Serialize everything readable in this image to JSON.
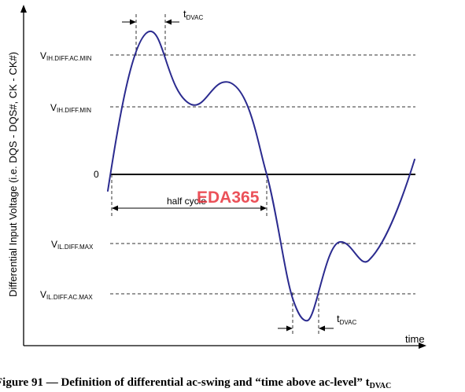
{
  "axes": {
    "y_label": "Differential Input Voltage (i.e. DQS - DQS#, CK - CK#)",
    "x_label": "time",
    "zero_label": "0"
  },
  "levels": {
    "vih_ac": {
      "main": "V",
      "sub": "IH.DIFF.AC.MIN"
    },
    "vih_dc": {
      "main": "V",
      "sub": "IH.DIFF.MIN"
    },
    "vil_dc": {
      "main": "V",
      "sub": "IL.DIFF.MAX"
    },
    "vil_ac": {
      "main": "V",
      "sub": "IL.DIFF.AC.MAX"
    }
  },
  "annotations": {
    "tdvac_top": {
      "main": "t",
      "sub": "DVAC"
    },
    "tdvac_bottom": {
      "main": "t",
      "sub": "DVAC"
    },
    "half_cycle": "half cycle",
    "watermark": "EDA365"
  },
  "caption": {
    "prefix": "Figure 91 — Definition of differential ac-swing and “time above ac-level” t",
    "sub": "DVAC"
  },
  "colors": {
    "waveform": "#2b2b8f",
    "axis": "#000000",
    "guide": "#333333",
    "watermark": "#e8323c"
  }
}
